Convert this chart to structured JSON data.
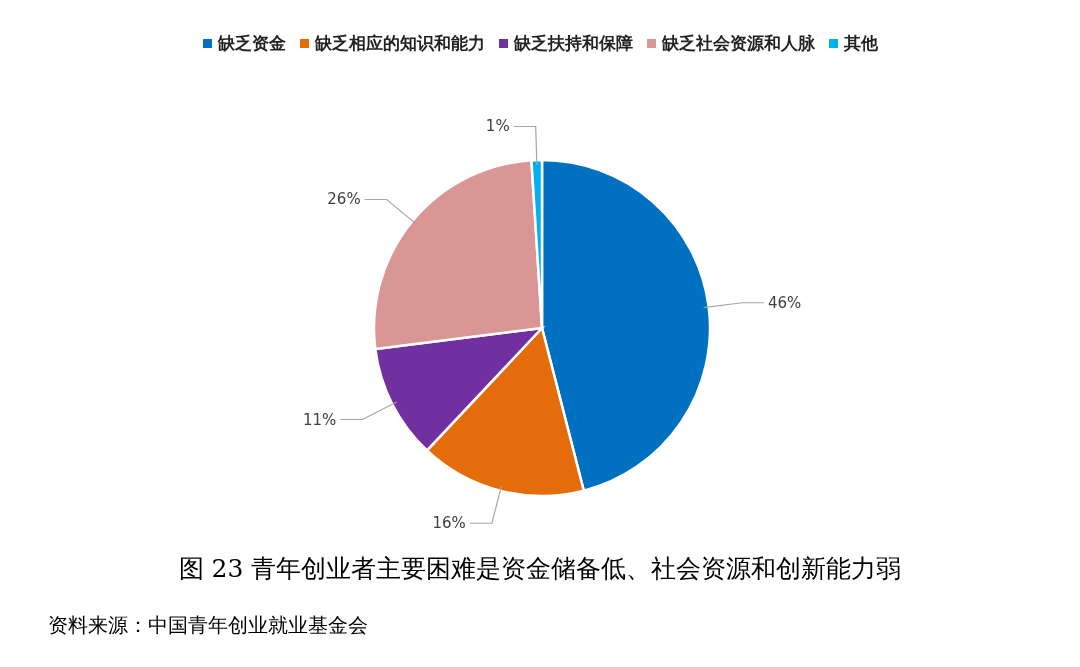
{
  "chart_data": {
    "type": "pie",
    "categories": [
      "缺乏资金",
      "缺乏相应的知识和能力",
      "缺乏扶持和保障",
      "缺乏社会资源和人脉",
      "其他"
    ],
    "values": [
      46,
      16,
      11,
      26,
      1
    ],
    "colors": [
      "#0070c0",
      "#e46c0a",
      "#7030a0",
      "#d99694",
      "#00b0f0"
    ],
    "value_labels": [
      "46%",
      "16%",
      "11%",
      "26%",
      "1%"
    ],
    "legend": "top",
    "title": "图 23 青年创业者主要困难是资金储备低、社会资源和创新能力弱",
    "annotations": [
      "资料来源：中国青年创业就业基金会"
    ]
  }
}
